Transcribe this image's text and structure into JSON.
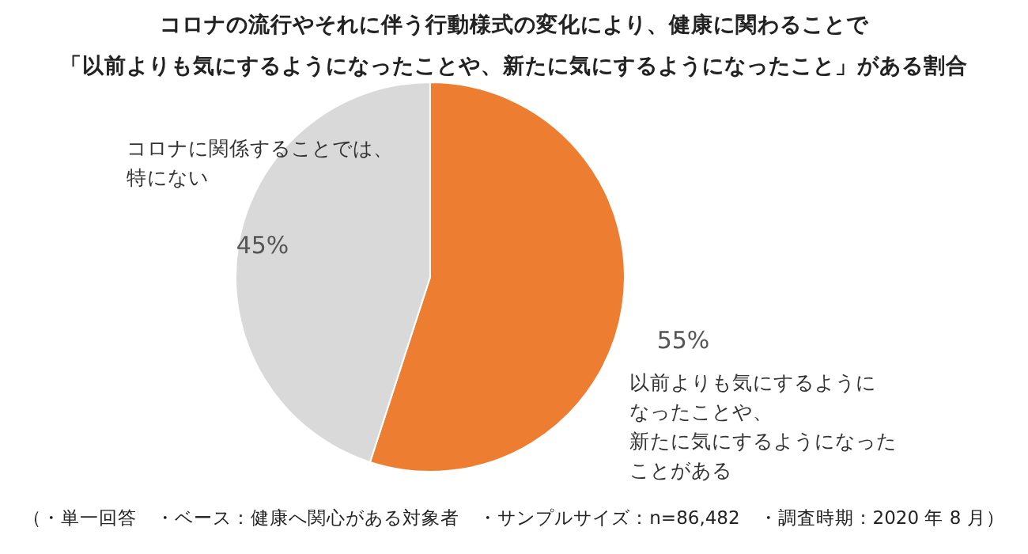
{
  "chart_data": {
    "type": "pie",
    "title": "コロナの流行やそれに伴う行動様式の変化により、健康に関わることで「以前よりも気にするようになったことや、新たに気にするようになったこと」がある割合",
    "categories": [
      "以前よりも気にするようになったことや、新たに気にするようになったことがある",
      "コロナに関係することでは、特にない"
    ],
    "values": [
      55,
      45
    ],
    "colors": [
      "#ed7d31",
      "#d9d9d9"
    ],
    "value_labels": [
      "55%",
      "45%"
    ],
    "annotations": [
      "（・単一回答　・ベース：健康へ関心がある対象者　・サンプルサイズ：n=86,482　・調査時期：2020 年 8 月）"
    ]
  }
}
